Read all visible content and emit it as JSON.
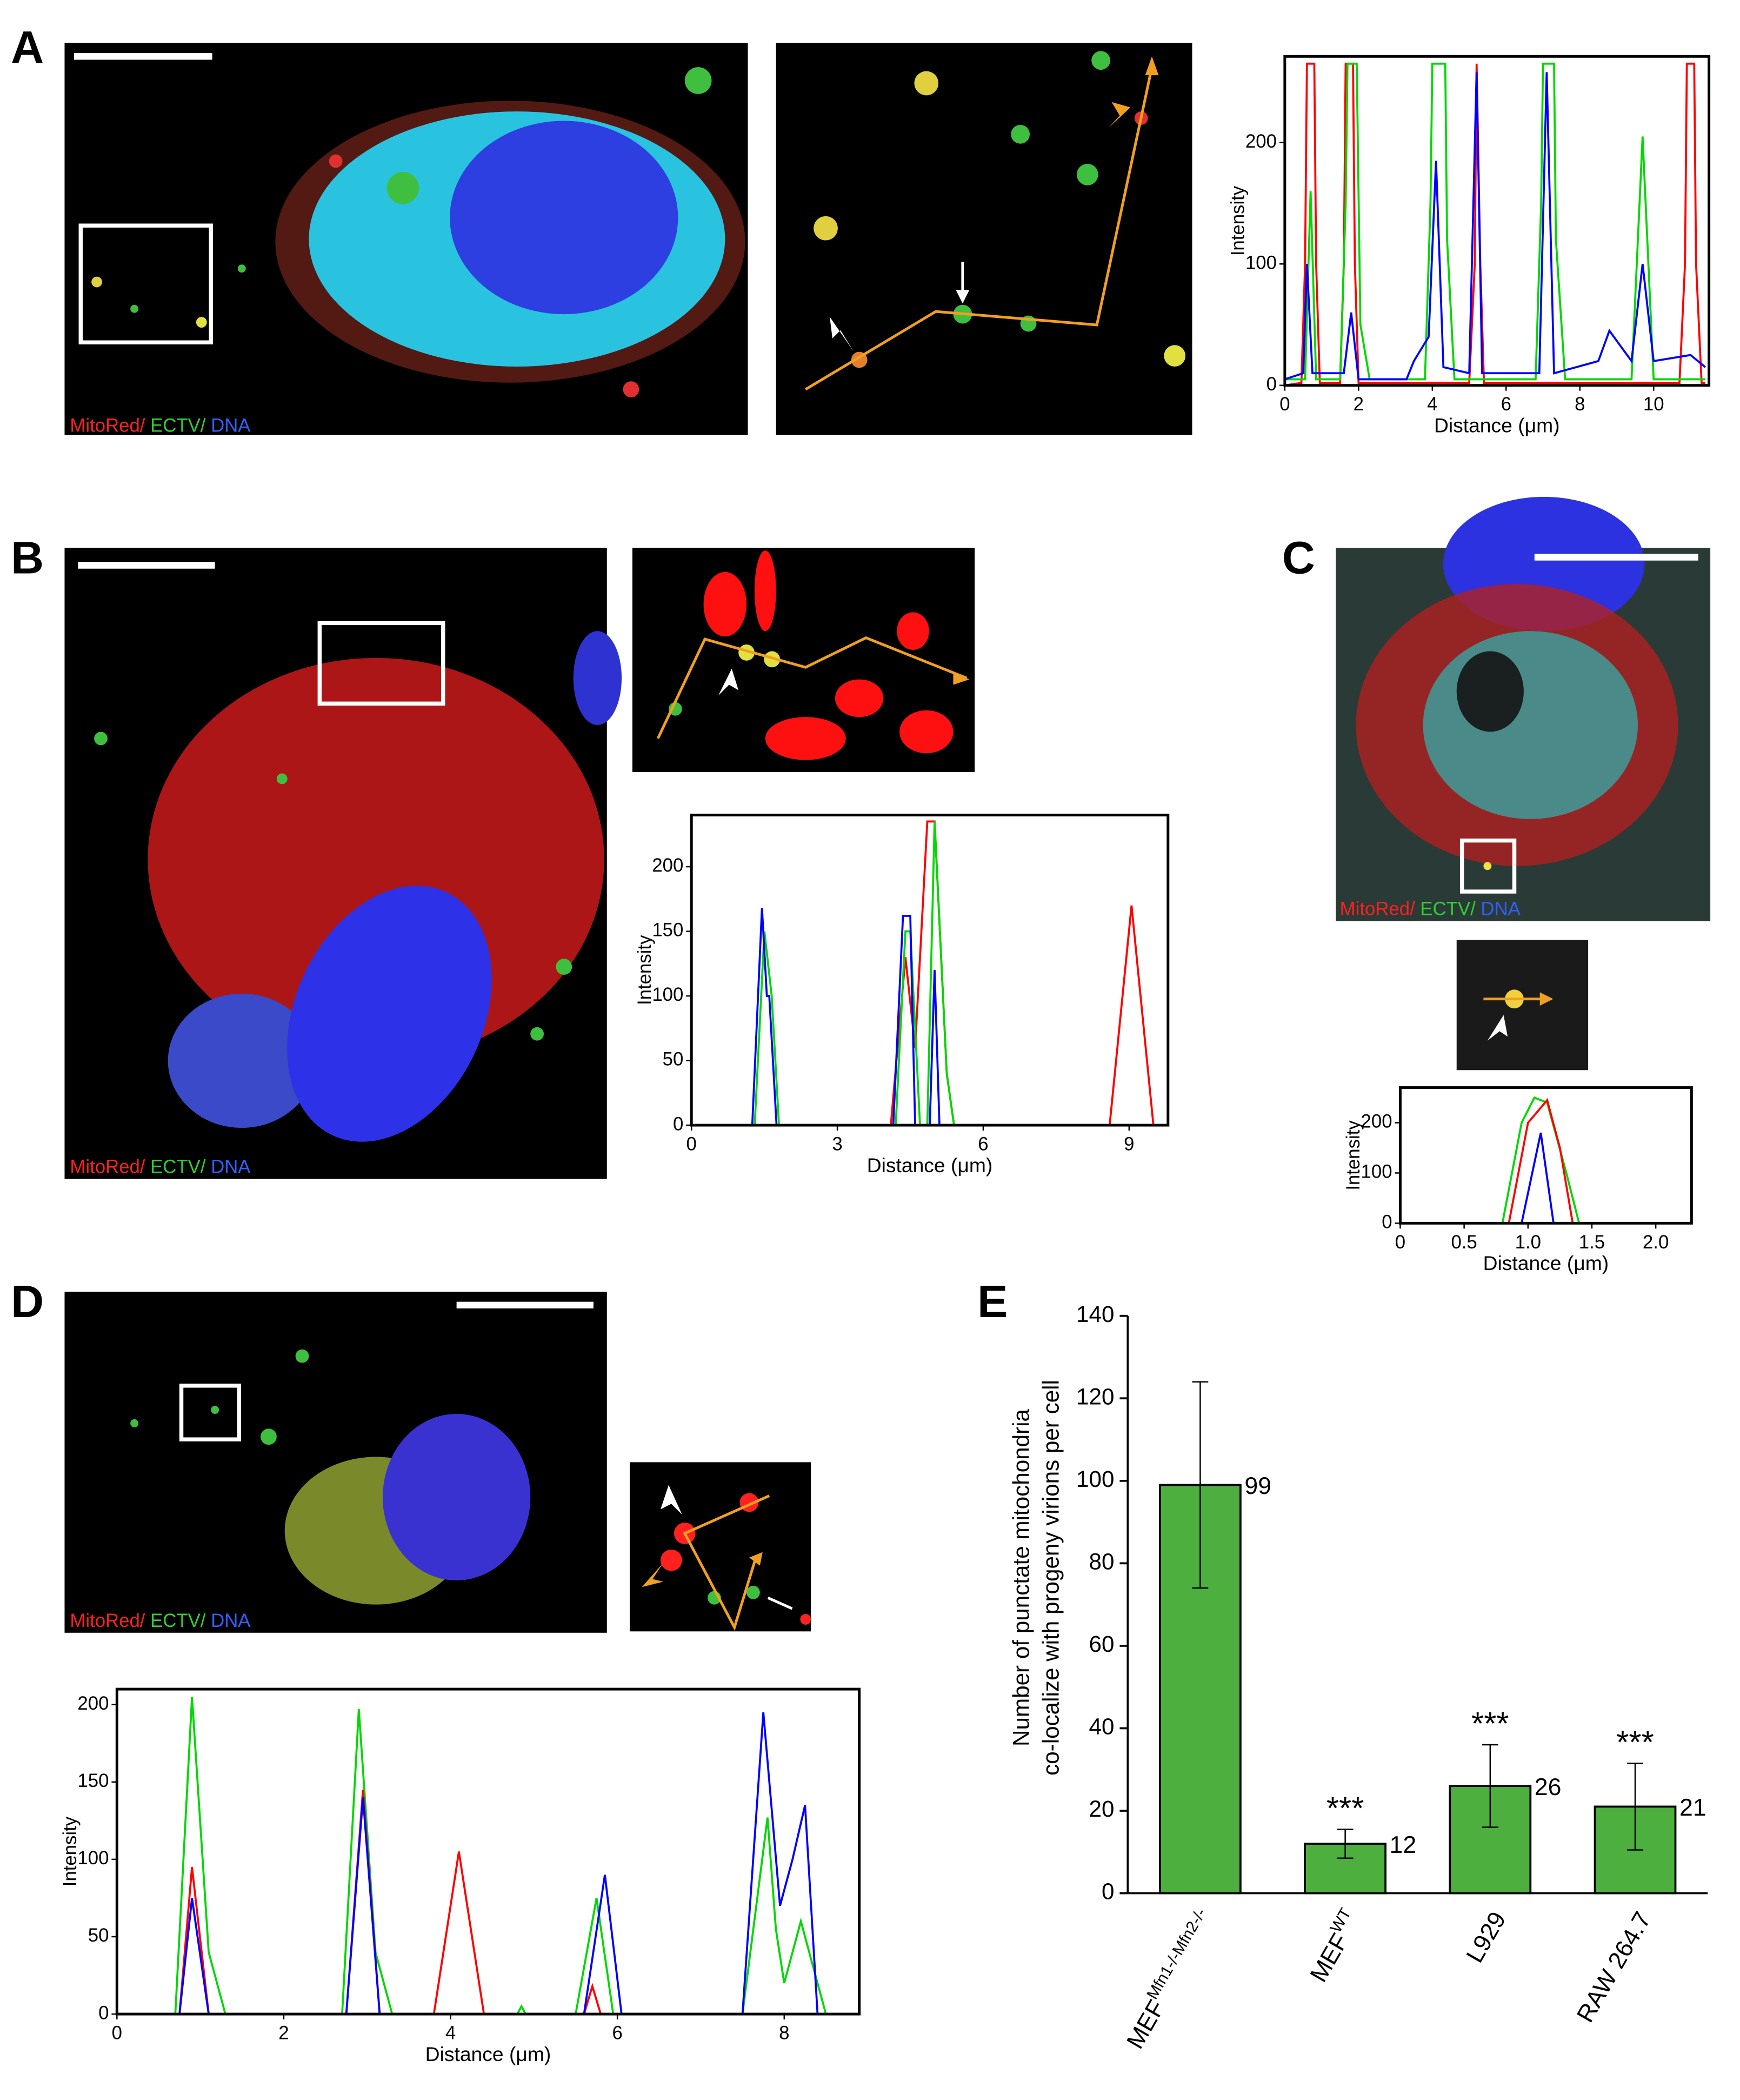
{
  "panel_labels": [
    "A",
    "B",
    "C",
    "D",
    "E"
  ],
  "micrographs": [
    {
      "legend": [
        "MitoRed/",
        " ECTV/",
        " DNA"
      ]
    },
    {
      "legend": [
        "MitoRed/",
        " ECTV/",
        " DNA"
      ]
    },
    {
      "legend": [
        "MitoRed/",
        " ECTV/",
        " DNA"
      ]
    },
    {
      "legend": [
        "MitoRed/",
        " ECTV/",
        " DNA"
      ]
    }
  ],
  "chart_data": [
    {
      "type": "line",
      "xlabel": "Distance (μm)",
      "ylabel": "Intensity",
      "xlim": [
        0,
        11.5
      ],
      "ylim": [
        0,
        271
      ],
      "xticks": [
        0,
        2,
        4,
        6,
        8,
        10
      ],
      "yticks": [
        0,
        100,
        200
      ],
      "series": [
        {
          "color": "#ff0000",
          "x": [
            0,
            0.45,
            0.55,
            0.6,
            0.8,
            0.85,
            0.95,
            1.5,
            1.6,
            1.65,
            1.85,
            1.9,
            2.0,
            5.0,
            5.15,
            5.2,
            5.3,
            5.4,
            10.7,
            10.85,
            10.9,
            11.1,
            11.15,
            11.3,
            11.4
          ],
          "values": [
            0,
            2,
            100,
            265,
            265,
            100,
            2,
            2,
            100,
            265,
            265,
            100,
            2,
            2,
            100,
            265,
            100,
            2,
            2,
            100,
            265,
            265,
            100,
            2,
            2
          ]
        },
        {
          "color": "#00d800",
          "x": [
            0,
            0.55,
            0.7,
            0.85,
            1.5,
            1.65,
            1.7,
            1.95,
            2.05,
            2.3,
            3.8,
            3.95,
            4.0,
            4.35,
            4.4,
            4.6,
            6.8,
            6.95,
            7.0,
            7.3,
            7.35,
            7.6,
            9.4,
            9.7,
            10.0,
            11.4
          ],
          "values": [
            5,
            5,
            160,
            5,
            5,
            150,
            265,
            265,
            50,
            5,
            5,
            150,
            265,
            265,
            120,
            5,
            5,
            150,
            265,
            265,
            120,
            5,
            5,
            205,
            5,
            5
          ]
        },
        {
          "color": "#0000ff",
          "x": [
            0,
            0.5,
            0.6,
            0.75,
            1.6,
            1.8,
            2.0,
            3.3,
            3.5,
            3.9,
            4.1,
            4.3,
            5.0,
            5.2,
            5.35,
            6.9,
            7.1,
            7.3,
            8.5,
            8.8,
            9.4,
            9.7,
            10.0,
            11.0,
            11.4
          ],
          "values": [
            5,
            10,
            100,
            10,
            10,
            60,
            5,
            5,
            20,
            40,
            185,
            15,
            10,
            258,
            10,
            10,
            258,
            10,
            20,
            45,
            20,
            100,
            20,
            25,
            15
          ]
        }
      ]
    },
    {
      "type": "line",
      "xlabel": "Distance (μm)",
      "ylabel": "Intensity",
      "xlim": [
        0,
        9.8
      ],
      "ylim": [
        0,
        240
      ],
      "xticks": [
        0,
        3,
        6,
        9
      ],
      "yticks": [
        0,
        50,
        100,
        150,
        200
      ],
      "series": [
        {
          "color": "#ff0000",
          "x": [
            0,
            4.1,
            4.4,
            4.6,
            4.85,
            5.0,
            5.25,
            5.4,
            8.6,
            9.05,
            9.5,
            9.8
          ],
          "values": [
            0,
            0,
            130,
            60,
            235,
            235,
            40,
            0,
            0,
            170,
            0,
            0
          ]
        },
        {
          "color": "#00d800",
          "x": [
            0,
            1.3,
            1.5,
            1.65,
            1.8,
            4.2,
            4.4,
            4.5,
            4.7,
            4.85,
            5.0,
            5.25,
            5.4,
            9.8
          ],
          "values": [
            0,
            0,
            150,
            100,
            0,
            0,
            150,
            150,
            0,
            0,
            235,
            40,
            0,
            0
          ]
        },
        {
          "color": "#0000ff",
          "x": [
            0,
            1.25,
            1.45,
            1.55,
            1.6,
            1.75,
            4.15,
            4.35,
            4.5,
            4.6,
            4.9,
            5.0,
            5.1,
            9.8
          ],
          "values": [
            0,
            0,
            168,
            100,
            100,
            0,
            0,
            162,
            162,
            0,
            0,
            120,
            0,
            0
          ]
        }
      ]
    },
    {
      "type": "line",
      "xlabel": "Distance (μm)",
      "ylabel": "Intensity",
      "xlim": [
        0,
        2.28
      ],
      "ylim": [
        0,
        270
      ],
      "xticks": [
        0,
        0.5,
        {
          "value": 1,
          "label": "1.0"
        },
        1.5,
        {
          "value": 2,
          "label": "2.0"
        }
      ],
      "yticks": [
        0,
        100,
        200
      ],
      "series": [
        {
          "color": "#00d800",
          "x": [
            0,
            0.8,
            0.95,
            1.05,
            1.15,
            1.3,
            1.4,
            2.28
          ],
          "values": [
            0,
            0,
            200,
            250,
            240,
            100,
            0,
            0
          ]
        },
        {
          "color": "#ff0000",
          "x": [
            0,
            0.85,
            1.0,
            1.15,
            1.25,
            1.35,
            2.28
          ],
          "values": [
            0,
            0,
            200,
            245,
            150,
            0,
            0
          ]
        },
        {
          "color": "#0000ff",
          "x": [
            0,
            0.95,
            1.05,
            1.1,
            1.2,
            2.28
          ],
          "values": [
            0,
            0,
            120,
            180,
            0,
            0
          ]
        }
      ]
    },
    {
      "type": "line",
      "xlabel": "Distance (μm)",
      "ylabel": "Intensity",
      "xlim": [
        0,
        8.9
      ],
      "ylim": [
        0,
        210
      ],
      "xticks": [
        0,
        2,
        4,
        6,
        8
      ],
      "yticks": [
        0,
        50,
        100,
        150,
        200
      ],
      "series": [
        {
          "color": "#00d800",
          "x": [
            0,
            0.7,
            0.9,
            1.1,
            1.3,
            2.7,
            2.9,
            3.1,
            3.3,
            4.8,
            4.85,
            4.9,
            5.5,
            5.75,
            5.95,
            7.5,
            7.8,
            7.9,
            8.0,
            8.2,
            8.3,
            8.5,
            8.9
          ],
          "values": [
            0,
            0,
            205,
            40,
            0,
            0,
            197,
            40,
            0,
            0,
            5,
            0,
            0,
            75,
            0,
            0,
            127,
            55,
            20,
            60,
            40,
            0,
            0
          ]
        },
        {
          "color": "#ff0000",
          "x": [
            0,
            0.75,
            0.9,
            1.1,
            2.75,
            2.95,
            3.15,
            3.8,
            4.1,
            4.4,
            5.6,
            5.7,
            5.8,
            8.9
          ],
          "values": [
            0,
            0,
            95,
            0,
            0,
            145,
            0,
            0,
            105,
            0,
            0,
            18,
            0,
            0
          ]
        },
        {
          "color": "#0000ff",
          "x": [
            0,
            0.75,
            0.9,
            1.1,
            2.75,
            2.95,
            3.15,
            5.6,
            5.85,
            6.05,
            7.5,
            7.75,
            7.95,
            8.1,
            8.25,
            8.4,
            8.9
          ],
          "values": [
            0,
            0,
            75,
            0,
            0,
            140,
            0,
            0,
            90,
            0,
            0,
            195,
            70,
            100,
            135,
            0,
            0
          ]
        }
      ]
    },
    {
      "type": "bar",
      "ylabel": [
        "Number of punctate mitochondria",
        "co-localize with progeny virions per cell"
      ],
      "categories": [
        "MEF",
        "MEF",
        "L929",
        "RAW 264.7"
      ],
      "category_superscripts": [
        "Mfn1-/-Mfn2-/-",
        "WT",
        null,
        null
      ],
      "values": [
        99,
        12,
        26,
        21
      ],
      "errors": [
        25,
        3.5,
        10,
        10.5
      ],
      "annotations": [
        null,
        "***",
        "***",
        "***"
      ],
      "color": "#4caf3e",
      "ylim": [
        0,
        140
      ],
      "yticks": [
        0,
        20,
        40,
        60,
        80,
        100,
        120,
        140
      ]
    }
  ]
}
